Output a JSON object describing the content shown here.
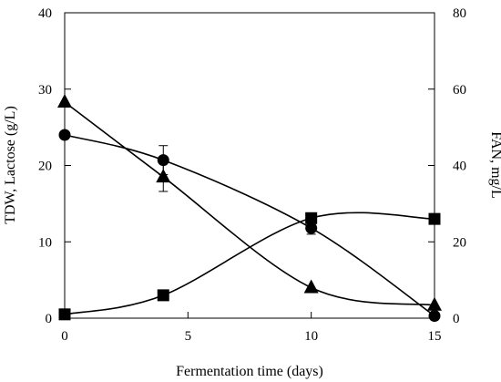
{
  "chart_data": {
    "type": "line",
    "xlabel": "Fermentation time (days)",
    "ylabel_left": "TDW, Lactose (g/L)",
    "ylabel_right": "FAN, mg/L",
    "xlim": [
      0,
      15
    ],
    "ylim_left": [
      0,
      40
    ],
    "ylim_right": [
      0,
      80
    ],
    "x_ticks": [
      0,
      5,
      10,
      15
    ],
    "y_ticks_left": [
      0,
      10,
      20,
      30,
      40
    ],
    "y_ticks_right": [
      0,
      20,
      40,
      60,
      80
    ],
    "grid": false,
    "legend": false,
    "series": [
      {
        "marker": "circle",
        "axis": "left",
        "x": [
          0,
          4,
          10,
          15
        ],
        "y": [
          24.0,
          20.7,
          11.8,
          0.3
        ],
        "err": [
          0,
          1.9,
          0.8,
          0
        ]
      },
      {
        "marker": "triangle",
        "axis": "left",
        "x": [
          0,
          4,
          10,
          15
        ],
        "y": [
          28.3,
          18.5,
          4.0,
          1.7
        ],
        "err": [
          0,
          1.9,
          0,
          0
        ]
      },
      {
        "marker": "square",
        "axis": "right",
        "x": [
          0,
          4,
          10,
          15
        ],
        "y": [
          1.0,
          6.0,
          26.2,
          26.0
        ],
        "err": [
          0,
          0,
          0,
          0
        ]
      }
    ],
    "color": "#000000"
  }
}
